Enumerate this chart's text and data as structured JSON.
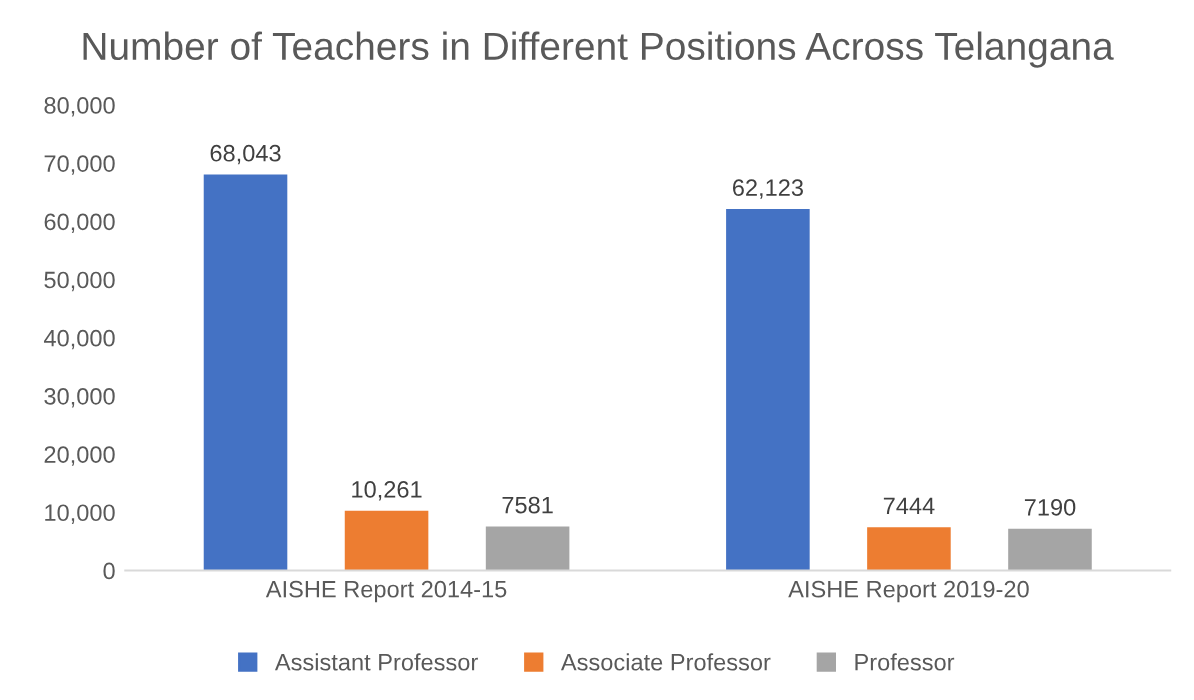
{
  "chart_data": {
    "type": "bar",
    "title": "Number of Teachers in Different Positions Across Telangana",
    "categories": [
      "AISHE Report 2014-15",
      "AISHE Report 2019-20"
    ],
    "series": [
      {
        "name": "Assistant Professor",
        "color": "#4472c4",
        "values": [
          68043,
          62123
        ],
        "value_labels": [
          "68,043",
          "62,123"
        ]
      },
      {
        "name": "Associate Professor",
        "color": "#ed7d31",
        "values": [
          10261,
          7444
        ],
        "value_labels": [
          "10,261",
          "7444"
        ]
      },
      {
        "name": "Professor",
        "color": "#a5a5a5",
        "values": [
          7581,
          7190
        ],
        "value_labels": [
          "7581",
          "7190"
        ]
      }
    ],
    "ylim": [
      0,
      80000
    ],
    "yticks": [
      {
        "value": 0,
        "label": "0"
      },
      {
        "value": 10000,
        "label": "10,000"
      },
      {
        "value": 20000,
        "label": "20,000"
      },
      {
        "value": 30000,
        "label": "30,000"
      },
      {
        "value": 40000,
        "label": "40,000"
      },
      {
        "value": 50000,
        "label": "50,000"
      },
      {
        "value": 60000,
        "label": "60,000"
      },
      {
        "value": 70000,
        "label": "70,000"
      },
      {
        "value": 80000,
        "label": "80,000"
      }
    ],
    "legend": "bottom"
  }
}
